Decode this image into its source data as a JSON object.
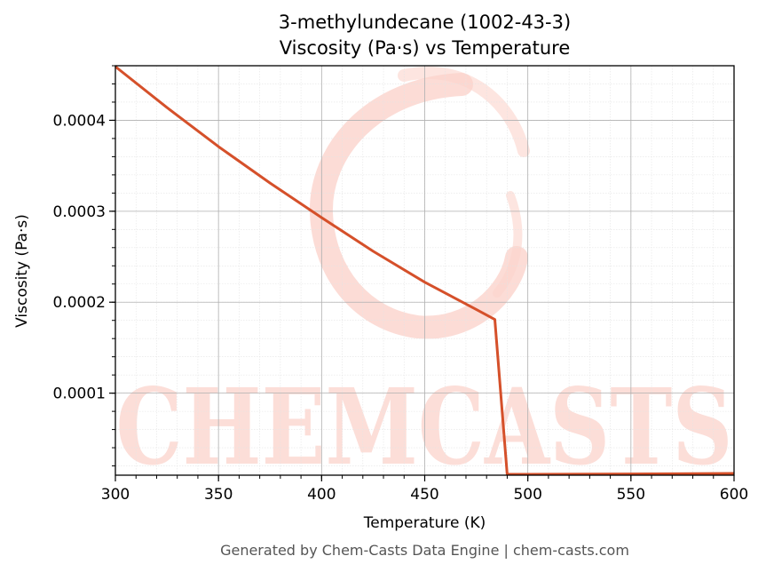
{
  "colors": {
    "series": "#d5502a",
    "watermark": "#fbd3cc",
    "grid_major": "#b0b0b0",
    "grid_minor": "#e4e4e4",
    "footer_text": "#555555"
  },
  "watermark": {
    "text": "CHEMCASTS"
  },
  "footer": "Generated by Chem-Casts Data Engine | chem-casts.com",
  "chart_data": {
    "type": "line",
    "title": "3-methylundecane (1002-43-3)",
    "subtitle": "Viscosity (Pa·s) vs Temperature",
    "xlabel": "Temperature (K)",
    "ylabel": "Viscosity (Pa·s)",
    "xlim": [
      300,
      600
    ],
    "ylim": [
      9.8e-06,
      0.00046
    ],
    "xticks": [
      300,
      350,
      400,
      450,
      500,
      550,
      600
    ],
    "xtick_labels": [
      "300",
      "350",
      "400",
      "450",
      "500",
      "550",
      "600"
    ],
    "yticks": [
      0.0001,
      0.0002,
      0.0003,
      0.0004
    ],
    "ytick_labels": [
      "0.0001",
      "0.0002",
      "0.0003",
      "0.0004"
    ],
    "grid": true,
    "minor_grid": true,
    "series": [
      {
        "x": [
          300,
          325,
          350,
          375,
          400,
          425,
          450,
          475,
          484,
          490,
          500,
          550,
          600
        ],
        "y": [
          0.000459,
          0.000414,
          0.000371,
          0.000331,
          0.000293,
          0.000256,
          0.000222,
          0.000192,
          0.000181,
          1.08e-05,
          1.08e-05,
          1.12e-05,
          1.18e-05
        ]
      }
    ]
  }
}
